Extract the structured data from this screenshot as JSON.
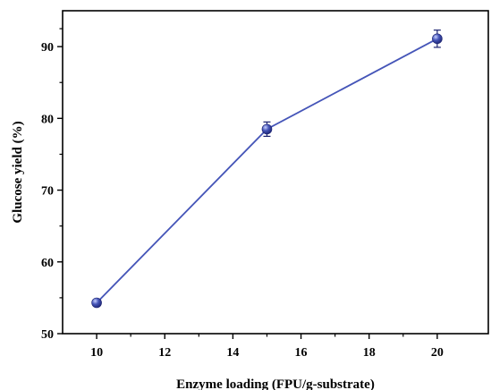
{
  "chart_data": {
    "type": "line",
    "xlabel": "Enzyme loading (FPU/g-substrate)",
    "ylabel": "Glucose yield (%)",
    "xlim": [
      9,
      21.5
    ],
    "ylim": [
      50,
      95
    ],
    "x_ticks": [
      10,
      12,
      14,
      16,
      18,
      20
    ],
    "y_ticks": [
      50,
      60,
      70,
      80,
      90
    ],
    "x_tick_labels": [
      "10",
      "12",
      "14",
      "16",
      "18",
      "20"
    ],
    "y_tick_labels": [
      "50",
      "60",
      "70",
      "80",
      "90"
    ],
    "series": [
      {
        "x": [
          10,
          15,
          20
        ],
        "y": [
          54.3,
          78.5,
          91.1
        ],
        "error": [
          0.4,
          1.0,
          1.2
        ],
        "color": "#4555b8"
      }
    ],
    "grid": false,
    "legend": false
  }
}
